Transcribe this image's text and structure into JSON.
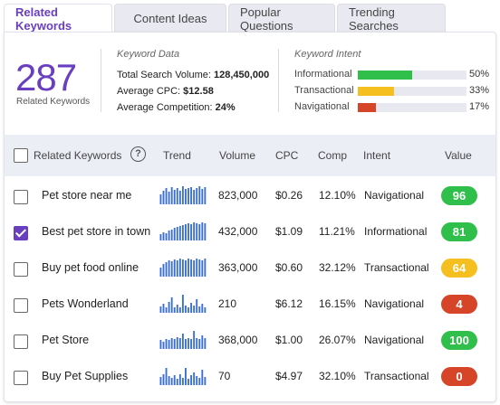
{
  "tabs": [
    {
      "label": "Related Keywords",
      "active": true
    },
    {
      "label": "Content Ideas",
      "active": false
    },
    {
      "label": "Popular Questions",
      "active": false
    },
    {
      "label": "Trending Searches",
      "active": false
    }
  ],
  "summary": {
    "count": "287",
    "count_label": "Related Keywords",
    "keyword_data_title": "Keyword Data",
    "total_volume_label": "Total Search Volume:",
    "total_volume_value": "128,450,000",
    "avg_cpc_label": "Average CPC:",
    "avg_cpc_value": "$12.58",
    "avg_comp_label": "Average Competition:",
    "avg_comp_value": "24%",
    "intent_title": "Keyword Intent",
    "intents": [
      {
        "label": "Informational",
        "percent": 50,
        "percent_text": "50%",
        "color": "#2fbf4a"
      },
      {
        "label": "Transactional",
        "percent": 33,
        "percent_text": "33%",
        "color": "#f5bf1f"
      },
      {
        "label": "Navigational",
        "percent": 17,
        "percent_text": "17%",
        "color": "#d64527"
      }
    ]
  },
  "table": {
    "headers": {
      "keyword": "Related Keywords",
      "trend": "Trend",
      "volume": "Volume",
      "cpc": "CPC",
      "comp": "Comp",
      "intent": "Intent",
      "value": "Value"
    },
    "help_icon": "question-circle-icon",
    "rows": [
      {
        "keyword": "Pet store near me",
        "checked": false,
        "volume": "823,000",
        "cpc": "$0.26",
        "comp": "12.10%",
        "intent": "Navigational",
        "value": "96",
        "value_color": "#2fbf4a",
        "trend": [
          0.55,
          0.75,
          0.9,
          0.7,
          0.95,
          0.8,
          0.9,
          0.75,
          1.0,
          0.85,
          0.9,
          0.95,
          0.8,
          0.9,
          1.0,
          0.85,
          0.95
        ]
      },
      {
        "keyword": "Best pet store in town",
        "checked": true,
        "volume": "432,000",
        "cpc": "$1.09",
        "comp": "11.21%",
        "intent": "Informational",
        "value": "81",
        "value_color": "#2fbf4a",
        "trend": [
          0.35,
          0.45,
          0.4,
          0.55,
          0.6,
          0.7,
          0.75,
          0.8,
          0.85,
          0.9,
          0.95,
          0.9,
          1.0,
          0.95,
          0.9,
          1.0,
          0.95
        ]
      },
      {
        "keyword": "Buy pet food online",
        "checked": false,
        "volume": "363,000",
        "cpc": "$0.60",
        "comp": "32.12%",
        "intent": "Transactional",
        "value": "64",
        "value_color": "#f5bf1f",
        "trend": [
          0.5,
          0.7,
          0.8,
          0.9,
          0.85,
          0.95,
          0.9,
          1.0,
          0.95,
          0.9,
          1.0,
          0.95,
          0.9,
          1.0,
          0.95,
          0.9,
          1.0
        ]
      },
      {
        "keyword": "Pets Wonderland",
        "checked": false,
        "volume": "210",
        "cpc": "$6.12",
        "comp": "16.15%",
        "intent": "Navigational",
        "value": "4",
        "value_color": "#d64527",
        "trend": [
          0.35,
          0.5,
          0.3,
          0.6,
          0.85,
          0.3,
          0.45,
          0.3,
          1.0,
          0.4,
          0.3,
          0.55,
          0.4,
          0.75,
          0.35,
          0.5,
          0.3
        ]
      },
      {
        "keyword": "Pet Store",
        "checked": false,
        "volume": "368,000",
        "cpc": "$1.00",
        "comp": "26.07%",
        "intent": "Navigational",
        "value": "100",
        "value_color": "#2fbf4a",
        "trend": [
          0.5,
          0.4,
          0.55,
          0.5,
          0.6,
          0.55,
          0.65,
          0.6,
          0.85,
          0.55,
          0.6,
          0.55,
          1.0,
          0.6,
          0.55,
          0.75,
          0.6
        ]
      },
      {
        "keyword": "Buy Pet Supplies",
        "checked": false,
        "volume": "70",
        "cpc": "$4.97",
        "comp": "32.10%",
        "intent": "Transactional",
        "value": "0",
        "value_color": "#d64527",
        "trend": [
          0.45,
          0.6,
          0.95,
          0.5,
          0.4,
          0.55,
          0.35,
          0.6,
          0.4,
          0.95,
          0.35,
          0.55,
          0.7,
          0.5,
          0.4,
          0.85,
          0.45
        ]
      }
    ]
  },
  "colors": {
    "accent": "#6a3fbf",
    "trend_bar": "#3b6fd1"
  }
}
